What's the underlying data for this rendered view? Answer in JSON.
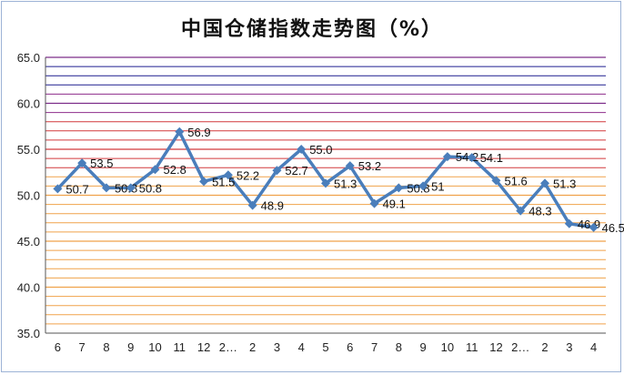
{
  "chart_data": {
    "type": "line",
    "title": "中国仓储指数走势图（%）",
    "xlabel": "",
    "ylabel": "",
    "categories": [
      "6",
      "7",
      "8",
      "9",
      "10",
      "11",
      "12",
      "2…",
      "2",
      "3",
      "4",
      "5",
      "6",
      "7",
      "8",
      "9",
      "10",
      "11",
      "12",
      "2…",
      "2",
      "3",
      "4"
    ],
    "series": [
      {
        "values": [
          50.7,
          53.5,
          50.8,
          50.8,
          52.8,
          56.9,
          51.5,
          52.2,
          48.9,
          52.7,
          55.0,
          51.3,
          53.2,
          49.1,
          50.8,
          51.0,
          54.2,
          54.1,
          51.6,
          48.3,
          51.3,
          46.9,
          46.5
        ],
        "labels": [
          "50.7",
          "53.5",
          "50.8",
          "50.8",
          "52.8",
          "56.9",
          "51.5",
          "52.2",
          "48.9",
          "52.7",
          "55.0",
          "51.3",
          "53.2",
          "49.1",
          "50.8",
          "51",
          "54.2",
          "54.1",
          "51.6",
          "48.3",
          "51.3",
          "46.9",
          "46.5"
        ],
        "color": "#4a7ebb"
      }
    ],
    "ylim": [
      35,
      65
    ],
    "yticks": [
      "35.0",
      "40.0",
      "45.0",
      "50.0",
      "55.0",
      "60.0",
      "65.0"
    ],
    "grid": true,
    "legend": "none"
  }
}
